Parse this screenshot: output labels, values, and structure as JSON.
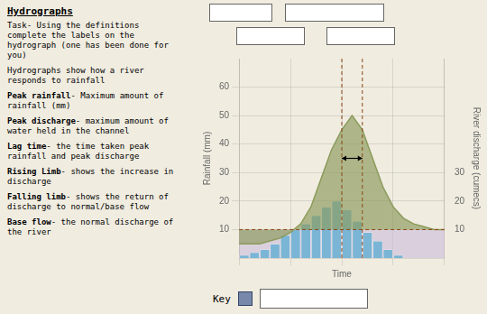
{
  "chart_data": {
    "type": "bar",
    "title": "Hydrographs",
    "task_text": "Task- Using the definitions\ncomplete the labels on the\nhydrograph (one has been done for\nyou)",
    "definitions": [
      "Hydrographs show how a river\nresponds to rainfall",
      "Peak rainfall- Maximum amount of\nrainfall (mm)",
      "Peak discharge- maximum amount of\nwater held in the channel",
      "Lag time- the time taken peak\nrainfall and peak discharge",
      "Rising Limb- shows the increase in\ndischarge",
      "Falling limb- shows the return of\ndischarge to normal/base flow",
      "Base flow- the normal discharge of\nthe river"
    ],
    "xlabel": "Time",
    "ylabel": "Rainfall (mm)",
    "y2label": "River discharge (cumecs)",
    "xlim": [
      0,
      20
    ],
    "ylim": [
      0,
      70
    ],
    "yticks": [
      10,
      20,
      30,
      40,
      50,
      60
    ],
    "y2lim": [
      0,
      70
    ],
    "y2ticks": [
      10,
      20,
      30
    ],
    "tick_labels": "y",
    "grid": true,
    "series": [
      {
        "type": "bar",
        "color": "#6ab0d4",
        "values": [
          1,
          2,
          3,
          5,
          8,
          10,
          12,
          15,
          18,
          20,
          17,
          13,
          9,
          6,
          3,
          1
        ]
      },
      {
        "type": "area",
        "color": "#8a9a5b",
        "axis": "y2",
        "x": [
          0,
          1,
          2,
          3,
          4,
          5,
          6,
          7,
          8,
          9,
          10,
          11,
          12,
          13,
          14,
          15,
          16,
          17,
          18,
          19,
          20
        ],
        "values": [
          5,
          5,
          5,
          6,
          7,
          9,
          12,
          18,
          28,
          38,
          45,
          50,
          45,
          35,
          25,
          18,
          14,
          12,
          11,
          10,
          10
        ]
      }
    ],
    "base_flow": {
      "value": 10,
      "color": "#c8b8d8"
    },
    "reference_lines": {
      "x": [
        10,
        12
      ],
      "y": [
        10
      ],
      "color": "#8b4513",
      "line_style": "dashed"
    },
    "lag_arrow": {
      "from": 10,
      "to": 12,
      "y": 35
    },
    "key": {
      "label": "Key",
      "color": "#7788aa"
    },
    "background": "#f0ece0"
  }
}
